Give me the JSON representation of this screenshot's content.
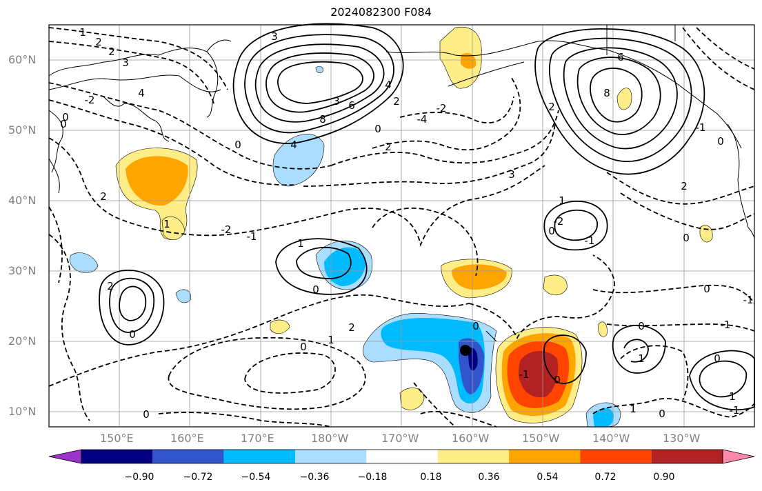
{
  "title": "2024082300 F084",
  "lat_labels": [
    "60°N",
    "50°N",
    "40°N",
    "30°N",
    "20°N",
    "10°N"
  ],
  "lon_labels": [
    "150°E",
    "160°E",
    "170°E",
    "180°W",
    "170°W",
    "160°W",
    "150°W",
    "140°W",
    "130°W"
  ],
  "colorbar": {
    "ticks": [
      "−0.90",
      "−0.72",
      "−0.54",
      "−0.36",
      "−0.18",
      "0.18",
      "0.36",
      "0.54",
      "0.72",
      "0.90"
    ],
    "colors": [
      "#9933cc",
      "#000080",
      "#3355cc",
      "#00bbff",
      "#aaddff",
      "#ffffff",
      "#ffee88",
      "#ffa500",
      "#ff4400",
      "#b22222",
      "#ff88aa"
    ]
  },
  "contour_labels": [
    "1",
    "2",
    "2",
    "3",
    "-2",
    "0",
    "4",
    "2",
    "3",
    "8",
    "6",
    "4",
    "2",
    "0",
    "2",
    "4",
    "3",
    "3",
    "-2",
    "-4",
    "0",
    "0",
    "2",
    "1",
    "-2",
    "-1",
    "0",
    "1",
    "0",
    "2",
    "0",
    "1",
    "0",
    "-2",
    "-1",
    "0",
    "-1",
    "0",
    "-1",
    "0",
    "1",
    "0",
    "-1",
    "0",
    "1",
    "0",
    "-1",
    "1",
    "0",
    "2",
    "2",
    "6",
    "8",
    "-1",
    "0",
    "1",
    "0"
  ],
  "colors": {
    "fill_orange": "#ffa500",
    "fill_yellow": "#ffee88",
    "fill_lightblue": "#aaddff",
    "fill_blue": "#00bbff",
    "fill_red": "#ff4400",
    "fill_darkred": "#b22222",
    "fill_darkblue": "#000080"
  }
}
